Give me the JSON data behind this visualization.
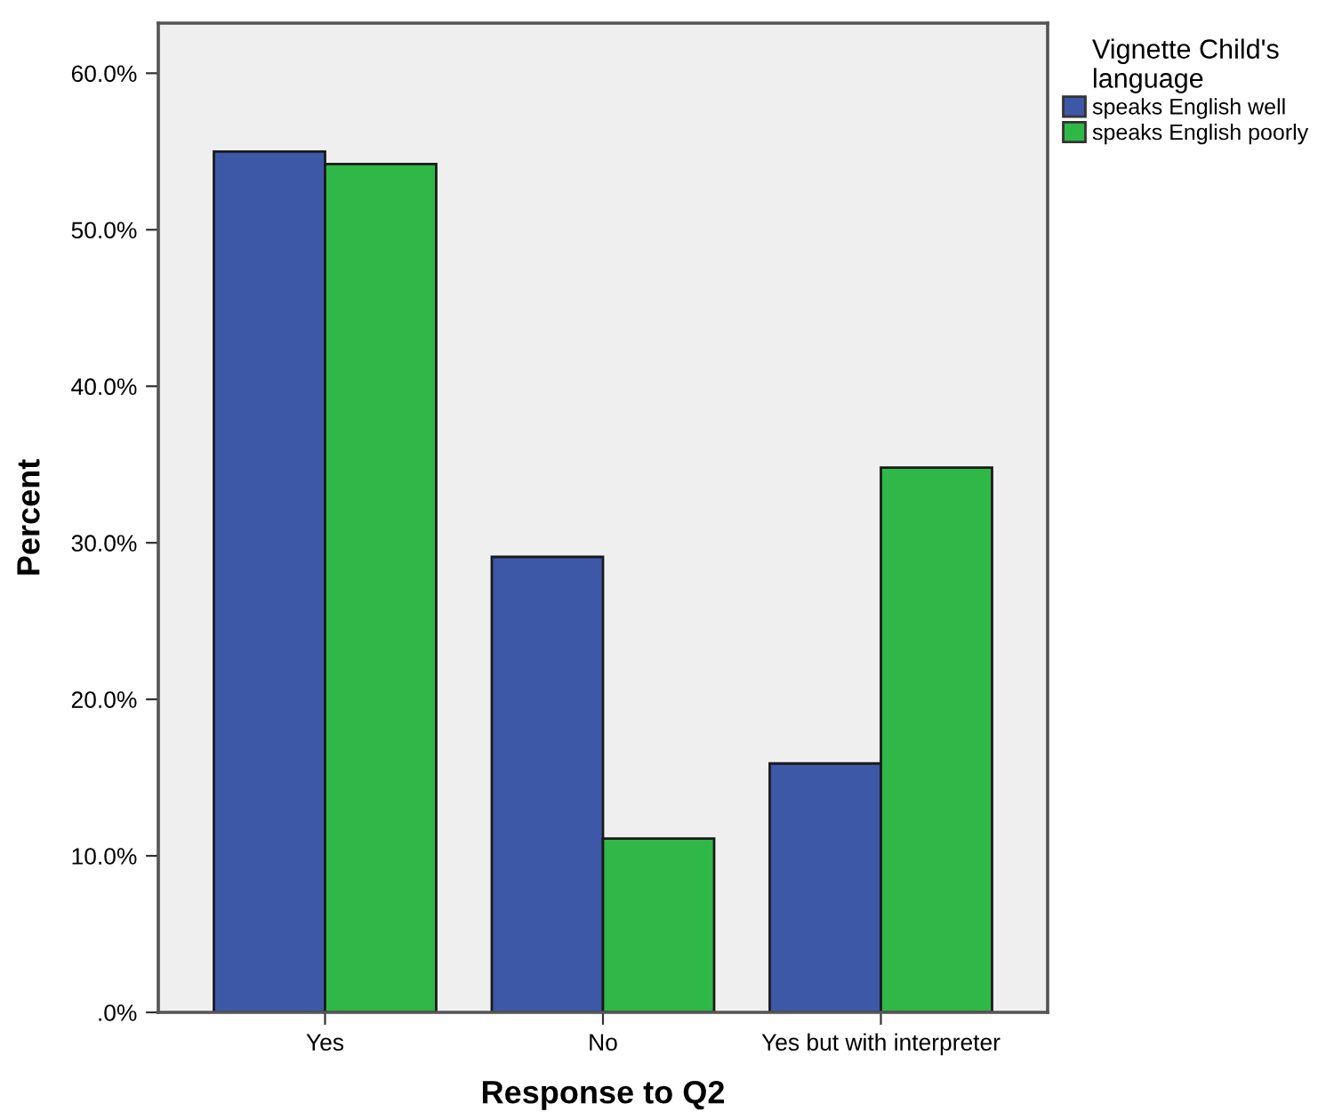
{
  "chart_data": {
    "type": "bar",
    "xlabel": "Response to Q2",
    "ylabel": "Percent",
    "legend_title": "Vignette Child's\nlanguage",
    "legend": "top right",
    "grid": false,
    "categories": [
      "Yes",
      "No",
      "Yes but with interpreter"
    ],
    "series": [
      {
        "name": "speaks English well",
        "color": "#3e58a8",
        "values": [
          55.0,
          29.1,
          15.9
        ]
      },
      {
        "name": "speaks English poorly",
        "color": "#2fb747",
        "values": [
          54.2,
          11.1,
          34.8
        ]
      }
    ],
    "ylim": [
      0,
      63.2
    ],
    "yticks": [
      {
        "value": 0,
        "label": ".0%"
      },
      {
        "value": 10,
        "label": "10.0%"
      },
      {
        "value": 20,
        "label": "20.0%"
      },
      {
        "value": 30,
        "label": "30.0%"
      },
      {
        "value": 40,
        "label": "40.0%"
      },
      {
        "value": 50,
        "label": "50.0%"
      },
      {
        "value": 60,
        "label": "60.0%"
      }
    ]
  }
}
